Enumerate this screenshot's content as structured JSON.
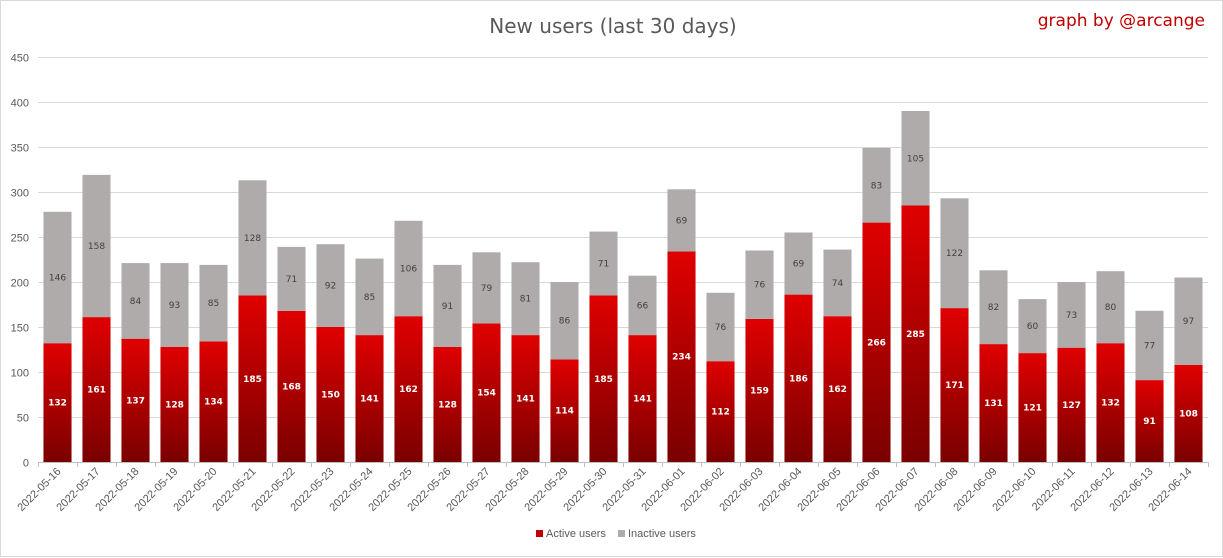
{
  "chart_data": {
    "type": "bar",
    "stacked": true,
    "title": "New users (last 30 days)",
    "credit": "graph by @arcange",
    "ylim": [
      0,
      450
    ],
    "yticks": [
      0,
      50,
      100,
      150,
      200,
      250,
      300,
      350,
      400,
      450
    ],
    "grid": true,
    "legend_position": "bottom",
    "categories": [
      "2022-05-16",
      "2022-05-17",
      "2022-05-18",
      "2022-05-19",
      "2022-05-20",
      "2022-05-21",
      "2022-05-22",
      "2022-05-23",
      "2022-05-24",
      "2022-05-25",
      "2022-05-26",
      "2022-05-27",
      "2022-05-28",
      "2022-05-29",
      "2022-05-30",
      "2022-05-31",
      "2022-06-01",
      "2022-06-02",
      "2022-06-03",
      "2022-06-04",
      "2022-06-05",
      "2022-06-06",
      "2022-06-07",
      "2022-06-08",
      "2022-06-09",
      "2022-06-10",
      "2022-06-11",
      "2022-06-12",
      "2022-06-13",
      "2022-06-14"
    ],
    "series": [
      {
        "name": "Active users",
        "color": "#c00000",
        "values": [
          132,
          161,
          137,
          128,
          134,
          185,
          168,
          150,
          141,
          162,
          128,
          154,
          141,
          114,
          185,
          141,
          234,
          112,
          159,
          186,
          162,
          266,
          285,
          171,
          131,
          121,
          127,
          132,
          91,
          108
        ]
      },
      {
        "name": "Inactive users",
        "color": "#afabab",
        "values": [
          146,
          158,
          84,
          93,
          85,
          128,
          71,
          92,
          85,
          106,
          91,
          79,
          81,
          86,
          71,
          66,
          69,
          76,
          76,
          69,
          74,
          83,
          105,
          122,
          82,
          60,
          73,
          80,
          77,
          97
        ]
      }
    ]
  }
}
